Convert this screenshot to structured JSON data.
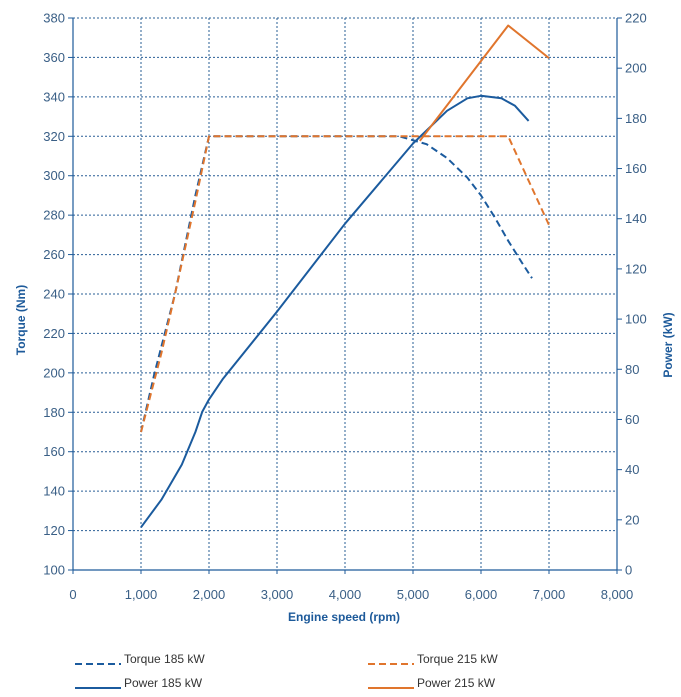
{
  "chart_data": {
    "type": "line",
    "title": "",
    "xlabel": "Engine speed (rpm)",
    "ylabel_left": "Torque (Nm)",
    "ylabel_right": "Power (kW)",
    "xlim": [
      0,
      8000
    ],
    "ylim_left": [
      100,
      380
    ],
    "ylim_right": [
      0,
      220
    ],
    "x_ticks": [
      0,
      1000,
      2000,
      3000,
      4000,
      5000,
      6000,
      7000,
      8000
    ],
    "x_tick_labels": [
      "0",
      "1,000",
      "2,000",
      "3,000",
      "4,000",
      "5,000",
      "6,000",
      "7,000",
      "8,000"
    ],
    "y_left_ticks": [
      100,
      120,
      140,
      160,
      180,
      200,
      220,
      240,
      260,
      280,
      300,
      320,
      340,
      360,
      380
    ],
    "y_left_tick_labels": [
      "100",
      "120",
      "140",
      "160",
      "180",
      "200",
      "220",
      "240",
      "260",
      "280",
      "300",
      "320",
      "340",
      "360",
      "380"
    ],
    "y_right_ticks": [
      0,
      20,
      40,
      60,
      80,
      100,
      120,
      140,
      160,
      180,
      200,
      220
    ],
    "y_right_tick_labels": [
      "0",
      "20",
      "40",
      "60",
      "80",
      "100",
      "120",
      "140",
      "160",
      "180",
      "200",
      "220"
    ],
    "grid": true,
    "legend_position": "bottom",
    "series": [
      {
        "name": "Torque 185 kW",
        "axis": "left",
        "style": "dashed",
        "color": "#1b5b9e",
        "x": [
          1000,
          1200,
          1500,
          1800,
          2000,
          3000,
          4000,
          4800,
          5200,
          5500,
          5800,
          6000,
          6200,
          6400,
          6600,
          6750
        ],
        "y": [
          170,
          200,
          240,
          290,
          320,
          320,
          320,
          320,
          316,
          309,
          299,
          290,
          279,
          267,
          256,
          248
        ]
      },
      {
        "name": "Power 185 kW",
        "axis": "right",
        "style": "solid",
        "color": "#1b5b9e",
        "x": [
          1000,
          1300,
          1600,
          1800,
          1900,
          2000,
          2200,
          3000,
          4000,
          5000,
          5500,
          5800,
          6000,
          6300,
          6500,
          6700
        ],
        "y": [
          17,
          28,
          42,
          55,
          63,
          68,
          76,
          103,
          138,
          170,
          183,
          188,
          189,
          188,
          185,
          179
        ]
      },
      {
        "name": "Torque 215 kW",
        "axis": "left",
        "style": "dashed",
        "color": "#e0752d",
        "x": [
          1000,
          1300,
          1500,
          1800,
          2000,
          3000,
          4000,
          5000,
          6000,
          6400,
          7000
        ],
        "y": [
          170,
          210,
          240,
          287,
          320,
          320,
          320,
          320,
          320,
          320,
          275
        ]
      },
      {
        "name": "Power 215 kW",
        "axis": "right",
        "style": "solid",
        "color": "#e0752d",
        "x": [
          5100,
          6400,
          7000
        ],
        "y": [
          171,
          217,
          204
        ]
      }
    ]
  }
}
